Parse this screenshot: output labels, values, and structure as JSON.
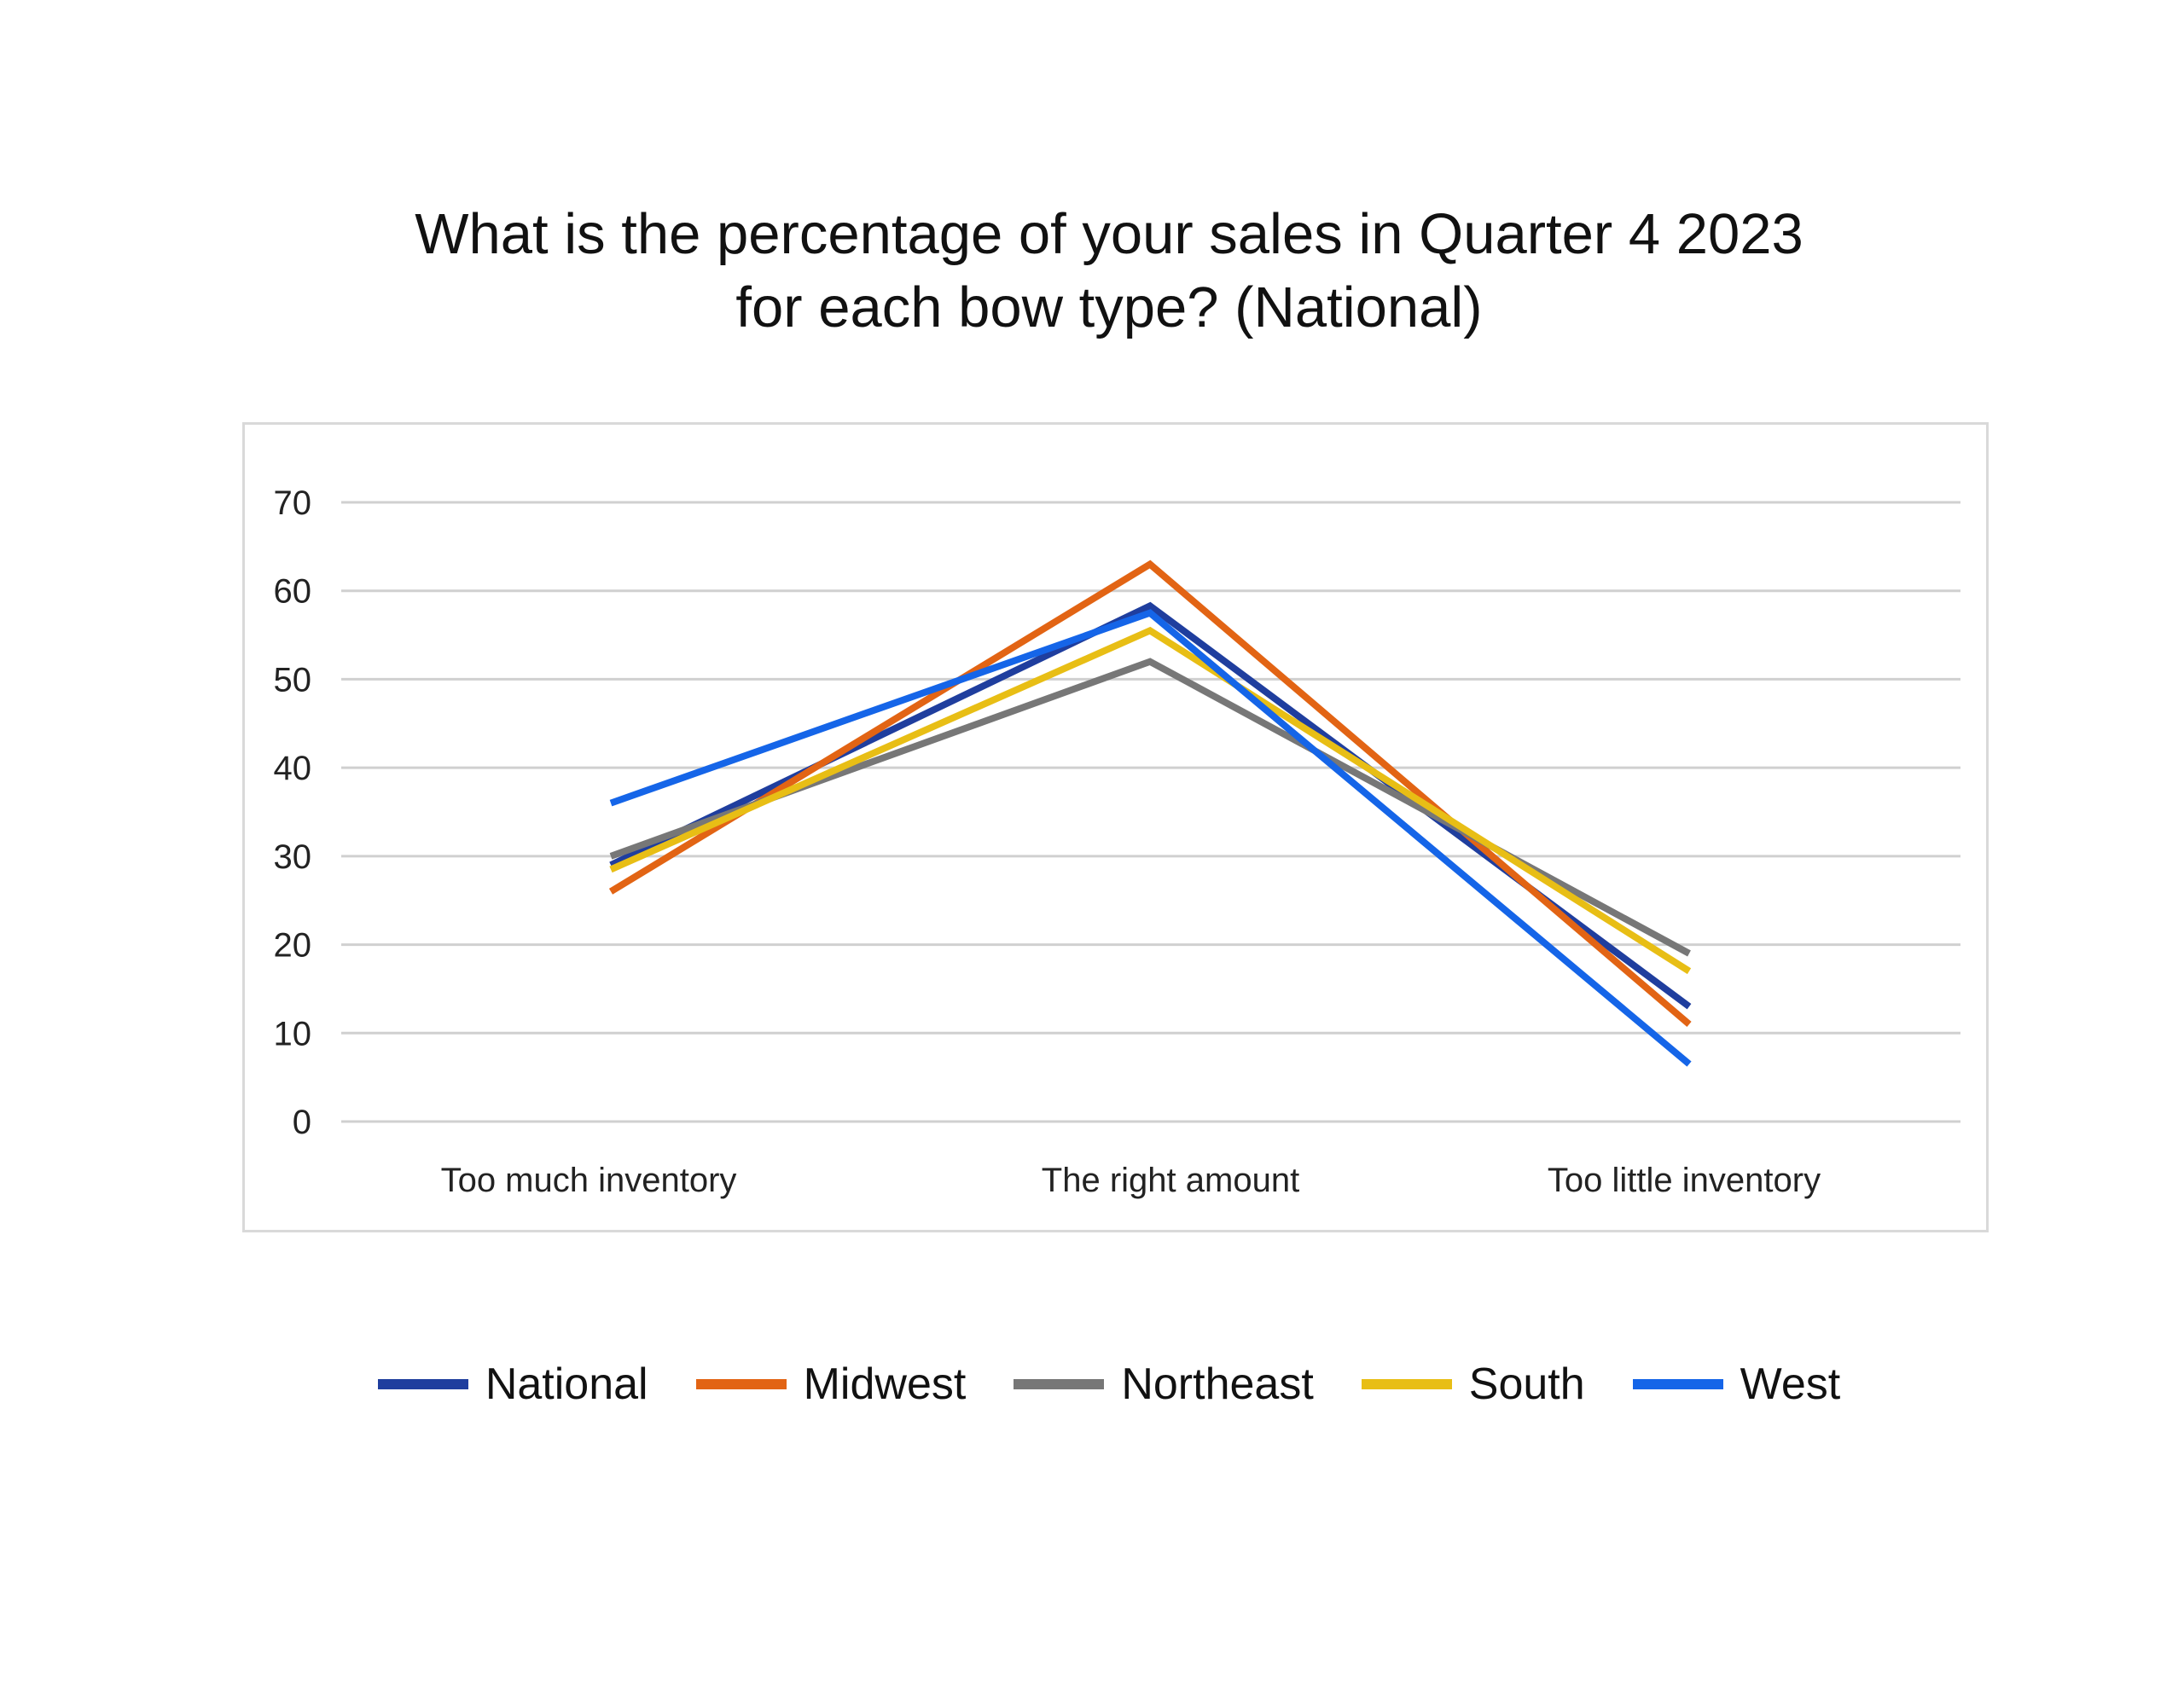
{
  "chart_data": {
    "type": "line",
    "title": [
      "What is the percentage of your sales in Quarter 4 2023",
      "for each bow type? (National)"
    ],
    "categories": [
      "Too much inventory",
      "The right amount",
      "Too little inventory"
    ],
    "ylim": [
      0,
      70
    ],
    "yticks": [
      0,
      10,
      20,
      30,
      40,
      50,
      60,
      70
    ],
    "grid": true,
    "legend_position": "bottom",
    "series": [
      {
        "name": "National",
        "color": "#1F3E9E",
        "values": [
          29,
          58.3,
          13
        ]
      },
      {
        "name": "Midwest",
        "color": "#E26414",
        "values": [
          26,
          63,
          11
        ]
      },
      {
        "name": "Northeast",
        "color": "#777777",
        "values": [
          30,
          52,
          19
        ]
      },
      {
        "name": "South",
        "color": "#E8BE15",
        "values": [
          28.5,
          55.5,
          17
        ]
      },
      {
        "name": "West",
        "color": "#1565E8",
        "values": [
          36,
          57.5,
          6.5
        ]
      }
    ]
  }
}
